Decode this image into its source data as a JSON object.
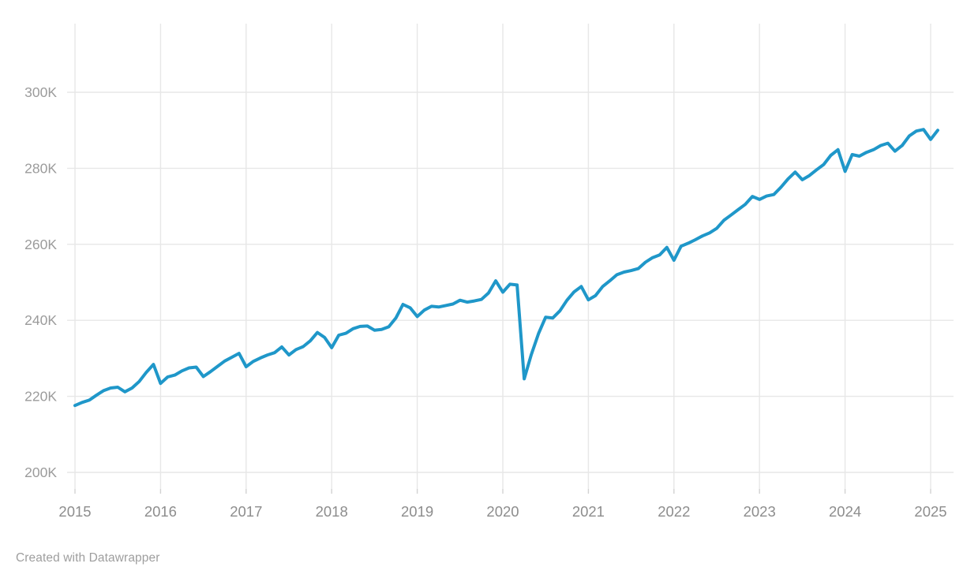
{
  "attribution": "Created with Datawrapper",
  "colors": {
    "background": "#ffffff",
    "line": "#1f97c9",
    "grid": "#e7e7e7",
    "tick_mark": "#d2d2d2",
    "y_label": "#9b9b9b",
    "x_label": "#8d8d8d",
    "attribution_text": "#9e9e9e"
  },
  "chart_data": {
    "type": "line",
    "title": "",
    "xlabel": "",
    "ylabel": "",
    "grid": true,
    "legend_position": "none",
    "frequency": "monthly",
    "start": "2015-01",
    "end": "2025-02",
    "x_ticks": [
      2015,
      2016,
      2017,
      2018,
      2019,
      2020,
      2021,
      2022,
      2023,
      2024,
      2025
    ],
    "x_tick_labels": [
      "2015",
      "2016",
      "2017",
      "2018",
      "2019",
      "2020",
      "2021",
      "2022",
      "2023",
      "2024",
      "2025"
    ],
    "y_ticks": [
      200,
      220,
      240,
      260,
      280,
      300
    ],
    "y_tick_labels": [
      "200K",
      "220K",
      "240K",
      "260K",
      "280K",
      "300K"
    ],
    "y_unit_thousands": "K",
    "series": [
      {
        "name": "value",
        "values": [
          217.6,
          218.4,
          219.0,
          220.3,
          221.5,
          222.2,
          222.4,
          221.2,
          222.2,
          223.9,
          226.3,
          228.4,
          223.4,
          225.1,
          225.6,
          226.7,
          227.5,
          227.7,
          225.2,
          226.5,
          227.9,
          229.3,
          230.3,
          231.3,
          227.8,
          229.2,
          230.1,
          230.9,
          231.5,
          233.0,
          230.9,
          232.3,
          233.1,
          234.6,
          236.8,
          235.5,
          232.8,
          236.1,
          236.6,
          237.8,
          238.4,
          238.5,
          237.4,
          237.6,
          238.3,
          240.6,
          244.2,
          243.3,
          241.0,
          242.7,
          243.7,
          243.5,
          243.9,
          244.3,
          245.3,
          244.8,
          245.1,
          245.5,
          247.2,
          250.4,
          247.4,
          249.5,
          249.3,
          224.6,
          231.0,
          236.5,
          240.8,
          240.6,
          242.5,
          245.3,
          247.5,
          248.9,
          245.4,
          246.5,
          248.9,
          250.4,
          252.0,
          252.7,
          253.1,
          253.6,
          255.3,
          256.5,
          257.2,
          259.2,
          255.8,
          259.5,
          260.3,
          261.2,
          262.2,
          263.0,
          264.2,
          266.3,
          267.7,
          269.1,
          270.5,
          272.6,
          271.8,
          272.7,
          273.1,
          275.0,
          277.2,
          279.0,
          277.0,
          278.1,
          279.6,
          281.0,
          283.4,
          284.9,
          279.2,
          283.6,
          283.2,
          284.2,
          284.9,
          286.0,
          286.6,
          284.5,
          286.0,
          288.5,
          289.8,
          290.2,
          287.6,
          290.0
        ]
      }
    ]
  }
}
